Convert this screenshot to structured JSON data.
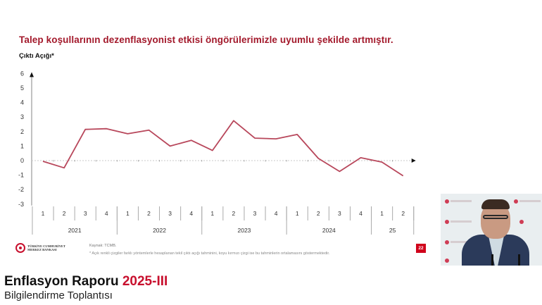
{
  "slide": {
    "title": "Talep koşullarının dezenflasyonist etkisi öngörülerimizle uyumlu şekilde artmıştır.",
    "y_axis_title": "Çıktı Açığı*",
    "source": "Kaynak: TCMB.",
    "footnote": "* Açık renkli çizgiler farklı yöntemlerle hesaplanan tekil çıktı açığı tahminini, koyu kırmızı çizgi ise bu tahminlerin ortalamasını göstermektedir.",
    "page_number": "22",
    "logo": {
      "line1": "TÜRKİYE CUMHURİYET",
      "line2": "MERKEZ BANKASI"
    }
  },
  "banner": {
    "title": "Enflasyon Raporu",
    "title_accent": "2025-III",
    "subtitle": "Bilgilendirme Toplantısı"
  },
  "colors": {
    "title_red": "#a3192b",
    "line": "#b8475b",
    "accent_red": "#c8102e",
    "badge_red": "#d0021b"
  },
  "chart_data": {
    "type": "line",
    "title": "Çıktı Açığı*",
    "xlabel": "",
    "ylabel": "Çıktı Açığı*",
    "ylim": [
      -3,
      6
    ],
    "yticks": [
      6,
      5,
      4,
      3,
      2,
      1,
      0,
      -1,
      -2,
      -3
    ],
    "grid": false,
    "legend": null,
    "categories": [
      "2021 Q1",
      "2021 Q2",
      "2021 Q3",
      "2021 Q4",
      "2022 Q1",
      "2022 Q2",
      "2022 Q3",
      "2022 Q4",
      "2023 Q1",
      "2023 Q2",
      "2023 Q3",
      "2023 Q4",
      "2024 Q1",
      "2024 Q2",
      "2024 Q3",
      "2024 Q4",
      "2025 Q1",
      "2025 Q2"
    ],
    "quarter_labels": [
      "1",
      "2",
      "3",
      "4",
      "1",
      "2",
      "3",
      "4",
      "1",
      "2",
      "3",
      "4",
      "1",
      "2",
      "3",
      "4",
      "1",
      "2"
    ],
    "year_groups": [
      {
        "label": "2021",
        "span": 4
      },
      {
        "label": "2022",
        "span": 4
      },
      {
        "label": "2023",
        "span": 4
      },
      {
        "label": "2024",
        "span": 4
      },
      {
        "label": "25",
        "span": 2
      }
    ],
    "series": [
      {
        "name": "Çıktı Açığı (ortalama)",
        "values": [
          -0.05,
          -0.5,
          2.15,
          2.2,
          1.85,
          2.1,
          1.0,
          1.4,
          0.7,
          2.75,
          1.55,
          1.5,
          1.8,
          0.15,
          -0.75,
          0.2,
          -0.1,
          -1.05
        ]
      }
    ]
  }
}
